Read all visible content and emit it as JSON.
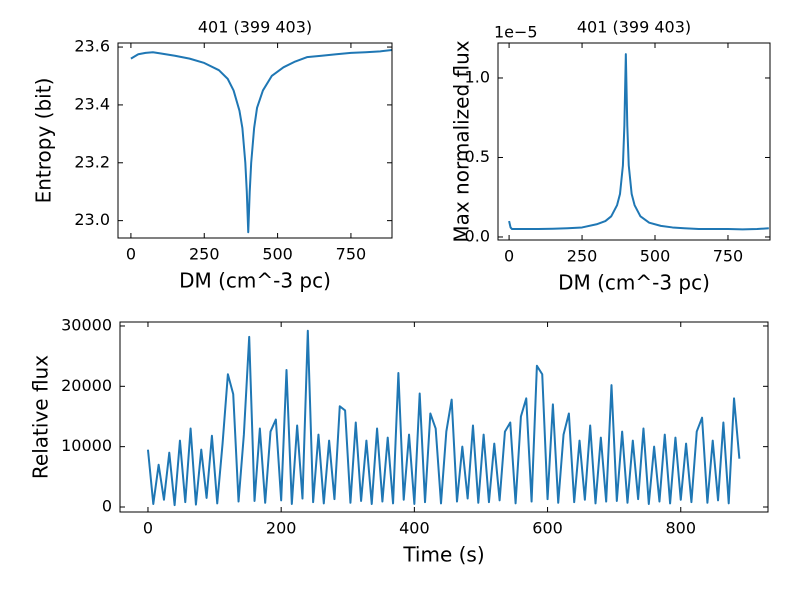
{
  "chart_data": [
    {
      "type": "line",
      "title": "401 (399 403)",
      "x_label": "DM (cm^-3 pc)",
      "y_label": "Entropy (bit)",
      "color": "#1f77b4",
      "x": [
        0,
        25,
        50,
        75,
        100,
        150,
        200,
        250,
        300,
        330,
        350,
        370,
        380,
        390,
        395,
        400,
        405,
        410,
        420,
        430,
        450,
        480,
        520,
        560,
        600,
        650,
        700,
        750,
        800,
        850,
        890
      ],
      "values": [
        23.56,
        23.575,
        23.58,
        23.582,
        23.578,
        23.57,
        23.56,
        23.545,
        23.52,
        23.49,
        23.45,
        23.38,
        23.32,
        23.2,
        23.1,
        22.96,
        23.1,
        23.2,
        23.32,
        23.39,
        23.45,
        23.5,
        23.53,
        23.55,
        23.565,
        23.57,
        23.575,
        23.58,
        23.582,
        23.585,
        23.59
      ],
      "xlim": [
        -44,
        890
      ],
      "ylim": [
        22.94,
        23.614
      ],
      "xticks": [
        0,
        250,
        500,
        750
      ],
      "yticks": [
        {
          "value": 23.0,
          "label": "23.0"
        },
        23.2,
        23.4,
        23.6
      ]
    },
    {
      "type": "line",
      "title": "401 (399 403)",
      "x_label": "DM (cm^-3 pc)",
      "y_label": "Max normalized flux",
      "offset_label": "1e−5",
      "color": "#1f77b4",
      "x": [
        0,
        5,
        10,
        50,
        100,
        150,
        200,
        250,
        300,
        330,
        350,
        370,
        380,
        390,
        395,
        400,
        405,
        410,
        420,
        430,
        450,
        480,
        520,
        560,
        600,
        650,
        700,
        750,
        800,
        850,
        890
      ],
      "values": [
        0.1,
        0.06,
        0.05,
        0.05,
        0.05,
        0.052,
        0.055,
        0.06,
        0.08,
        0.1,
        0.13,
        0.2,
        0.27,
        0.45,
        0.7,
        1.15,
        0.7,
        0.45,
        0.27,
        0.2,
        0.13,
        0.09,
        0.07,
        0.06,
        0.055,
        0.05,
        0.05,
        0.05,
        0.048,
        0.05,
        0.055
      ],
      "xlim": [
        -38,
        894
      ],
      "ylim": [
        -0.019,
        1.22
      ],
      "xticks": [
        0,
        250,
        500,
        750
      ],
      "yticks": [
        {
          "value": 0,
          "label": "0.0"
        },
        0.5,
        {
          "value": 1,
          "label": "1.0"
        }
      ]
    },
    {
      "type": "line",
      "x_label": "Time (s)",
      "y_label": "Relative flux",
      "color": "#1f77b4",
      "x": [
        0,
        8,
        16,
        24,
        32,
        40,
        48,
        56,
        64,
        72,
        80,
        88,
        96,
        104,
        112,
        120,
        128,
        136,
        144,
        152,
        160,
        168,
        176,
        184,
        192,
        200,
        208,
        216,
        224,
        232,
        240,
        248,
        256,
        264,
        272,
        280,
        288,
        296,
        304,
        312,
        320,
        328,
        336,
        344,
        352,
        360,
        368,
        376,
        384,
        392,
        400,
        408,
        416,
        424,
        432,
        440,
        448,
        456,
        464,
        472,
        480,
        488,
        496,
        504,
        512,
        520,
        528,
        536,
        544,
        552,
        560,
        568,
        576,
        584,
        592,
        600,
        608,
        616,
        624,
        632,
        640,
        648,
        656,
        664,
        672,
        680,
        688,
        696,
        704,
        712,
        720,
        728,
        736,
        744,
        752,
        760,
        768,
        776,
        784,
        792,
        800,
        808,
        816,
        824,
        832,
        840,
        848,
        856,
        864,
        872,
        880,
        888
      ],
      "values": [
        9500,
        500,
        7000,
        1200,
        9000,
        300,
        11000,
        800,
        13000,
        400,
        9500,
        1500,
        11800,
        600,
        10500,
        22000,
        18700,
        900,
        12000,
        28200,
        1000,
        13000,
        700,
        12500,
        14500,
        1100,
        22700,
        500,
        13500,
        1400,
        29200,
        800,
        12000,
        600,
        11000,
        1300,
        16700,
        16000,
        700,
        14000,
        1000,
        11000,
        500,
        13000,
        900,
        11500,
        600,
        22200,
        1200,
        12000,
        500,
        18800,
        800,
        15500,
        13000,
        600,
        12500,
        17800,
        900,
        10000,
        1400,
        13500,
        700,
        12000,
        800,
        10500,
        1100,
        12500,
        14000,
        600,
        15000,
        18000,
        900,
        23400,
        22000,
        1300,
        17000,
        700,
        12000,
        15500,
        800,
        11000,
        1200,
        13500,
        600,
        11500,
        900,
        20200,
        1000,
        12500,
        700,
        11000,
        1300,
        13000,
        500,
        10000,
        900,
        12000,
        600,
        11500,
        1200,
        10500,
        800,
        12500,
        14800,
        700,
        11000,
        1100,
        14000,
        600,
        18000,
        8000
      ],
      "xlim": [
        -42,
        931
      ],
      "ylim": [
        -830,
        30660
      ],
      "xticks": [
        0,
        200,
        400,
        600,
        800
      ],
      "yticks": [
        0,
        10000,
        20000,
        30000
      ]
    }
  ]
}
